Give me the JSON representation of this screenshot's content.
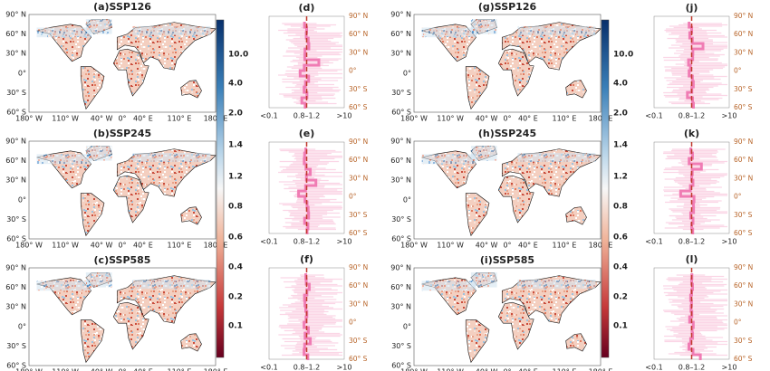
{
  "panels": [
    {
      "maps": [
        {
          "title": "(a)SSP126"
        },
        {
          "title": "(b)SSP245"
        },
        {
          "title": "(c)SSP585"
        }
      ],
      "profiles": [
        {
          "title": "(d)"
        },
        {
          "title": "(e)"
        },
        {
          "title": "(f)"
        }
      ]
    },
    {
      "maps": [
        {
          "title": "(g)SSP126"
        },
        {
          "title": "(h)SSP245"
        },
        {
          "title": "(i)SSP585"
        }
      ],
      "profiles": [
        {
          "title": "(j)"
        },
        {
          "title": "(k)"
        },
        {
          "title": "(l)"
        }
      ]
    }
  ],
  "map_lat_labels": [
    "90° N",
    "60° N",
    "30° N",
    "0°",
    "30° S",
    "60° S"
  ],
  "map_lon_labels": [
    "180° W",
    "110° W",
    "40° W",
    "0°",
    "40° E",
    "110° E",
    "180° E"
  ],
  "colorbar_labels": [
    "10.0",
    "4.0",
    "2.0",
    "1.4",
    "1.2",
    "0.8",
    "0.6",
    "0.4",
    "0.2",
    "0.1"
  ],
  "profile_x_labels": [
    "<0.1",
    "0.8–1.2",
    ">10"
  ],
  "profile_lat_labels": [
    "90° N",
    "60° N",
    "30° N",
    "0°",
    "30° S",
    "60° S"
  ]
}
